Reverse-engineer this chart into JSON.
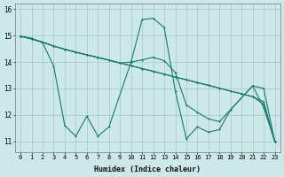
{
  "xlabel": "Humidex (Indice chaleur)",
  "background_color": "#cce8e8",
  "grid_color": "#aacccc",
  "line_color": "#1a7a6e",
  "x_ticks": [
    0,
    1,
    2,
    3,
    4,
    5,
    6,
    7,
    8,
    9,
    10,
    11,
    12,
    13,
    14,
    15,
    16,
    17,
    18,
    19,
    20,
    21,
    22,
    23
  ],
  "y_ticks": [
    11,
    12,
    13,
    14,
    15,
    16
  ],
  "ylim": [
    10.6,
    16.2
  ],
  "xlim": [
    -0.5,
    23.5
  ],
  "series": [
    {
      "x": [
        0,
        1,
        2,
        3,
        4,
        5,
        6,
        7,
        8,
        10,
        11,
        12,
        13,
        14,
        15,
        16,
        17,
        18,
        19,
        21,
        22,
        23
      ],
      "y": [
        14.97,
        14.9,
        14.72,
        13.85,
        11.6,
        11.2,
        11.95,
        11.2,
        11.55,
        14.0,
        15.6,
        15.65,
        15.3,
        12.9,
        11.1,
        11.55,
        11.35,
        11.45,
        12.2,
        13.1,
        13.0,
        11.0
      ]
    },
    {
      "x": [
        0,
        1,
        2,
        3,
        4,
        5,
        6,
        7,
        8,
        9,
        10,
        11,
        12,
        13,
        14,
        15,
        16,
        17,
        18,
        19,
        20,
        21,
        22,
        23
      ],
      "y": [
        14.97,
        14.87,
        14.75,
        14.6,
        14.48,
        14.37,
        14.27,
        14.17,
        14.07,
        13.96,
        13.86,
        13.75,
        13.65,
        13.54,
        13.43,
        13.33,
        13.22,
        13.12,
        13.01,
        12.9,
        12.8,
        12.69,
        12.5,
        11.0
      ]
    },
    {
      "x": [
        0,
        1,
        2,
        3,
        4,
        5,
        6,
        7,
        8,
        9,
        10,
        11,
        12,
        13,
        14,
        15,
        16,
        17,
        18,
        19,
        20,
        21,
        22,
        23
      ],
      "y": [
        14.97,
        14.87,
        14.75,
        14.6,
        14.48,
        14.37,
        14.27,
        14.17,
        14.07,
        13.96,
        13.86,
        13.75,
        13.65,
        13.54,
        13.43,
        13.33,
        13.22,
        13.12,
        13.01,
        12.9,
        12.8,
        12.69,
        12.4,
        11.0
      ]
    },
    {
      "x": [
        0,
        1,
        2,
        3,
        4,
        5,
        6,
        7,
        8,
        9,
        10,
        11,
        12,
        13,
        14,
        15,
        16,
        17,
        18,
        19,
        21,
        22,
        23
      ],
      "y": [
        14.97,
        14.87,
        14.75,
        14.6,
        14.48,
        14.37,
        14.27,
        14.17,
        14.07,
        13.96,
        14.0,
        14.08,
        14.18,
        14.05,
        13.6,
        12.38,
        12.1,
        11.85,
        11.75,
        12.2,
        13.1,
        12.28,
        11.0
      ]
    }
  ]
}
